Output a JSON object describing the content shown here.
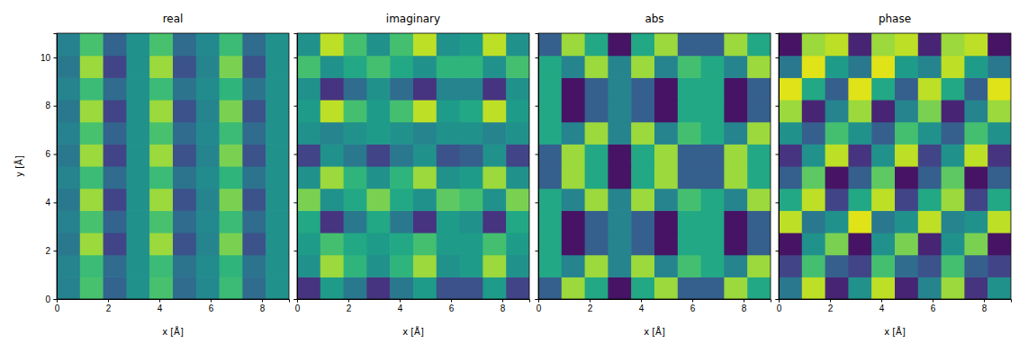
{
  "chart_data": [
    {
      "type": "heatmap",
      "title": "real",
      "xlabel": "x [Å]",
      "ylabel": "y [Å]",
      "xlim": [
        0,
        9.05
      ],
      "ylim": [
        0,
        11
      ],
      "xticks": [
        0,
        2,
        4,
        6,
        8
      ],
      "yticks": [
        0,
        2,
        4,
        6,
        8,
        10
      ],
      "x_edges": [
        0,
        0.905,
        1.81,
        2.715,
        3.62,
        4.525,
        5.43,
        6.335,
        7.24,
        8.145,
        9.05
      ],
      "y_edges": [
        0,
        0.917,
        1.833,
        2.75,
        3.667,
        4.583,
        5.5,
        6.417,
        7.333,
        8.25,
        9.167,
        10.083,
        11
      ],
      "zlim": [
        0,
        1
      ],
      "z": [
        [
          0.44,
          0.71,
          0.32,
          0.5,
          0.71,
          0.35,
          0.47,
          0.68,
          0.35,
          0.5
        ],
        [
          0.45,
          0.68,
          0.35,
          0.5,
          0.68,
          0.38,
          0.48,
          0.65,
          0.38,
          0.5
        ],
        [
          0.4,
          0.85,
          0.2,
          0.5,
          0.85,
          0.25,
          0.45,
          0.8,
          0.25,
          0.5
        ],
        [
          0.44,
          0.71,
          0.32,
          0.5,
          0.71,
          0.35,
          0.47,
          0.68,
          0.35,
          0.5
        ],
        [
          0.4,
          0.85,
          0.2,
          0.5,
          0.85,
          0.25,
          0.45,
          0.8,
          0.25,
          0.5
        ],
        [
          0.45,
          0.68,
          0.35,
          0.5,
          0.68,
          0.38,
          0.48,
          0.65,
          0.38,
          0.5
        ],
        [
          0.4,
          0.85,
          0.2,
          0.5,
          0.85,
          0.25,
          0.45,
          0.8,
          0.25,
          0.5
        ],
        [
          0.44,
          0.71,
          0.32,
          0.5,
          0.71,
          0.35,
          0.47,
          0.68,
          0.35,
          0.5
        ],
        [
          0.4,
          0.85,
          0.2,
          0.5,
          0.85,
          0.25,
          0.45,
          0.8,
          0.25,
          0.5
        ],
        [
          0.45,
          0.68,
          0.35,
          0.5,
          0.68,
          0.38,
          0.48,
          0.65,
          0.38,
          0.5
        ],
        [
          0.4,
          0.85,
          0.2,
          0.5,
          0.85,
          0.25,
          0.45,
          0.8,
          0.25,
          0.5
        ],
        [
          0.44,
          0.71,
          0.32,
          0.5,
          0.71,
          0.35,
          0.47,
          0.68,
          0.35,
          0.5
        ]
      ]
    },
    {
      "type": "heatmap",
      "title": "imaginary",
      "xlabel": "x [Å]",
      "tick_labels": "x",
      "xlim": [
        0,
        9.05
      ],
      "ylim": [
        0,
        11
      ],
      "xticks": [
        0,
        2,
        4,
        6,
        8
      ],
      "yticks": [
        0,
        2,
        4,
        6,
        8,
        10
      ],
      "x_edges": [
        0,
        0.905,
        1.81,
        2.715,
        3.62,
        4.525,
        5.43,
        6.335,
        7.24,
        8.145,
        9.05
      ],
      "y_edges": [
        0,
        0.917,
        1.833,
        2.75,
        3.667,
        4.583,
        5.5,
        6.417,
        7.333,
        8.25,
        9.167,
        10.083,
        11
      ],
      "zlim": [
        0,
        1
      ],
      "z": [
        [
          0.15,
          0.55,
          0.4,
          0.15,
          0.4,
          0.55,
          0.25,
          0.25,
          0.55,
          0.2
        ],
        [
          0.5,
          0.85,
          0.65,
          0.5,
          0.65,
          0.85,
          0.5,
          0.55,
          0.85,
          0.5
        ],
        [
          0.55,
          0.7,
          0.6,
          0.55,
          0.6,
          0.7,
          0.55,
          0.55,
          0.7,
          0.55
        ],
        [
          0.6,
          0.15,
          0.4,
          0.6,
          0.4,
          0.15,
          0.55,
          0.5,
          0.15,
          0.6
        ],
        [
          0.8,
          0.5,
          0.6,
          0.8,
          0.6,
          0.5,
          0.75,
          0.7,
          0.5,
          0.8
        ],
        [
          0.5,
          0.85,
          0.65,
          0.5,
          0.65,
          0.85,
          0.5,
          0.55,
          0.85,
          0.5
        ],
        [
          0.2,
          0.5,
          0.4,
          0.2,
          0.4,
          0.5,
          0.25,
          0.3,
          0.5,
          0.2
        ],
        [
          0.5,
          0.45,
          0.5,
          0.55,
          0.5,
          0.45,
          0.5,
          0.5,
          0.45,
          0.5
        ],
        [
          0.55,
          0.9,
          0.7,
          0.55,
          0.7,
          0.9,
          0.55,
          0.6,
          0.9,
          0.55
        ],
        [
          0.5,
          0.15,
          0.35,
          0.5,
          0.35,
          0.15,
          0.45,
          0.45,
          0.15,
          0.5
        ],
        [
          0.7,
          0.5,
          0.6,
          0.7,
          0.6,
          0.5,
          0.65,
          0.65,
          0.5,
          0.7
        ],
        [
          0.5,
          0.9,
          0.7,
          0.5,
          0.7,
          0.9,
          0.5,
          0.55,
          0.9,
          0.5
        ]
      ]
    },
    {
      "type": "heatmap",
      "title": "abs",
      "xlabel": "x [Å]",
      "tick_labels": "x",
      "xlim": [
        0,
        9.05
      ],
      "ylim": [
        0,
        11
      ],
      "xticks": [
        0,
        2,
        4,
        6,
        8
      ],
      "yticks": [
        0,
        2,
        4,
        6,
        8,
        10
      ],
      "x_edges": [
        0,
        0.905,
        1.81,
        2.715,
        3.62,
        4.525,
        5.43,
        6.335,
        7.24,
        8.145,
        9.05
      ],
      "y_edges": [
        0,
        0.917,
        1.833,
        2.75,
        3.667,
        4.583,
        5.5,
        6.417,
        7.333,
        8.25,
        9.167,
        10.083,
        11
      ],
      "zlim": [
        0,
        1
      ],
      "z": [
        [
          0.3,
          0.85,
          0.6,
          0.05,
          0.6,
          0.85,
          0.3,
          0.3,
          0.85,
          0.6
        ],
        [
          0.6,
          0.45,
          0.85,
          0.45,
          0.85,
          0.45,
          0.7,
          0.6,
          0.45,
          0.85
        ],
        [
          0.6,
          0.05,
          0.3,
          0.45,
          0.3,
          0.05,
          0.6,
          0.6,
          0.05,
          0.3
        ],
        [
          0.6,
          0.05,
          0.3,
          0.45,
          0.3,
          0.05,
          0.6,
          0.6,
          0.05,
          0.3
        ],
        [
          0.6,
          0.45,
          0.85,
          0.45,
          0.85,
          0.45,
          0.7,
          0.6,
          0.45,
          0.85
        ],
        [
          0.3,
          0.85,
          0.6,
          0.05,
          0.6,
          0.85,
          0.3,
          0.3,
          0.85,
          0.6
        ],
        [
          0.3,
          0.85,
          0.6,
          0.05,
          0.6,
          0.85,
          0.3,
          0.3,
          0.85,
          0.6
        ],
        [
          0.6,
          0.45,
          0.85,
          0.45,
          0.85,
          0.45,
          0.7,
          0.6,
          0.45,
          0.85
        ],
        [
          0.6,
          0.05,
          0.3,
          0.45,
          0.3,
          0.05,
          0.6,
          0.6,
          0.05,
          0.3
        ],
        [
          0.6,
          0.05,
          0.3,
          0.45,
          0.3,
          0.05,
          0.6,
          0.6,
          0.05,
          0.3
        ],
        [
          0.6,
          0.45,
          0.85,
          0.45,
          0.85,
          0.45,
          0.7,
          0.6,
          0.45,
          0.85
        ],
        [
          0.3,
          0.85,
          0.6,
          0.05,
          0.6,
          0.85,
          0.3,
          0.3,
          0.85,
          0.6
        ]
      ]
    },
    {
      "type": "heatmap",
      "title": "phase",
      "xlabel": "x [Å]",
      "tick_labels": "x",
      "xlim": [
        0,
        9.05
      ],
      "ylim": [
        0,
        11
      ],
      "xticks": [
        0,
        2,
        4,
        6,
        8
      ],
      "yticks": [
        0,
        2,
        4,
        6,
        8,
        10
      ],
      "x_edges": [
        0,
        0.905,
        1.81,
        2.715,
        3.62,
        4.525,
        5.43,
        6.335,
        7.24,
        8.145,
        9.05
      ],
      "y_edges": [
        0,
        0.917,
        1.833,
        2.75,
        3.667,
        4.583,
        5.5,
        6.417,
        7.333,
        8.25,
        9.167,
        10.083,
        11
      ],
      "zlim": [
        0,
        1
      ],
      "z": [
        [
          0.4,
          0.9,
          0.1,
          0.5,
          0.9,
          0.1,
          0.45,
          0.85,
          0.15,
          0.5
        ],
        [
          0.2,
          0.7,
          0.3,
          0.2,
          0.7,
          0.35,
          0.25,
          0.7,
          0.3,
          0.2
        ],
        [
          0.05,
          0.5,
          0.8,
          0.05,
          0.5,
          0.8,
          0.1,
          0.5,
          0.8,
          0.05
        ],
        [
          0.9,
          0.4,
          0.5,
          0.95,
          0.4,
          0.5,
          0.9,
          0.45,
          0.5,
          0.9
        ],
        [
          0.6,
          0.9,
          0.2,
          0.6,
          0.9,
          0.2,
          0.6,
          0.85,
          0.2,
          0.6
        ],
        [
          0.3,
          0.75,
          0.05,
          0.3,
          0.75,
          0.05,
          0.3,
          0.75,
          0.05,
          0.3
        ],
        [
          0.15,
          0.5,
          0.9,
          0.15,
          0.5,
          0.9,
          0.2,
          0.5,
          0.9,
          0.15
        ],
        [
          0.5,
          0.3,
          0.7,
          0.5,
          0.3,
          0.7,
          0.5,
          0.3,
          0.7,
          0.5
        ],
        [
          0.85,
          0.1,
          0.45,
          0.85,
          0.1,
          0.45,
          0.8,
          0.1,
          0.45,
          0.85
        ],
        [
          0.95,
          0.6,
          0.3,
          0.95,
          0.6,
          0.3,
          0.9,
          0.6,
          0.3,
          0.95
        ],
        [
          0.4,
          0.95,
          0.55,
          0.4,
          0.95,
          0.55,
          0.45,
          0.9,
          0.55,
          0.4
        ],
        [
          0.05,
          0.85,
          0.9,
          0.1,
          0.85,
          0.9,
          0.1,
          0.85,
          0.9,
          0.05
        ]
      ]
    }
  ]
}
